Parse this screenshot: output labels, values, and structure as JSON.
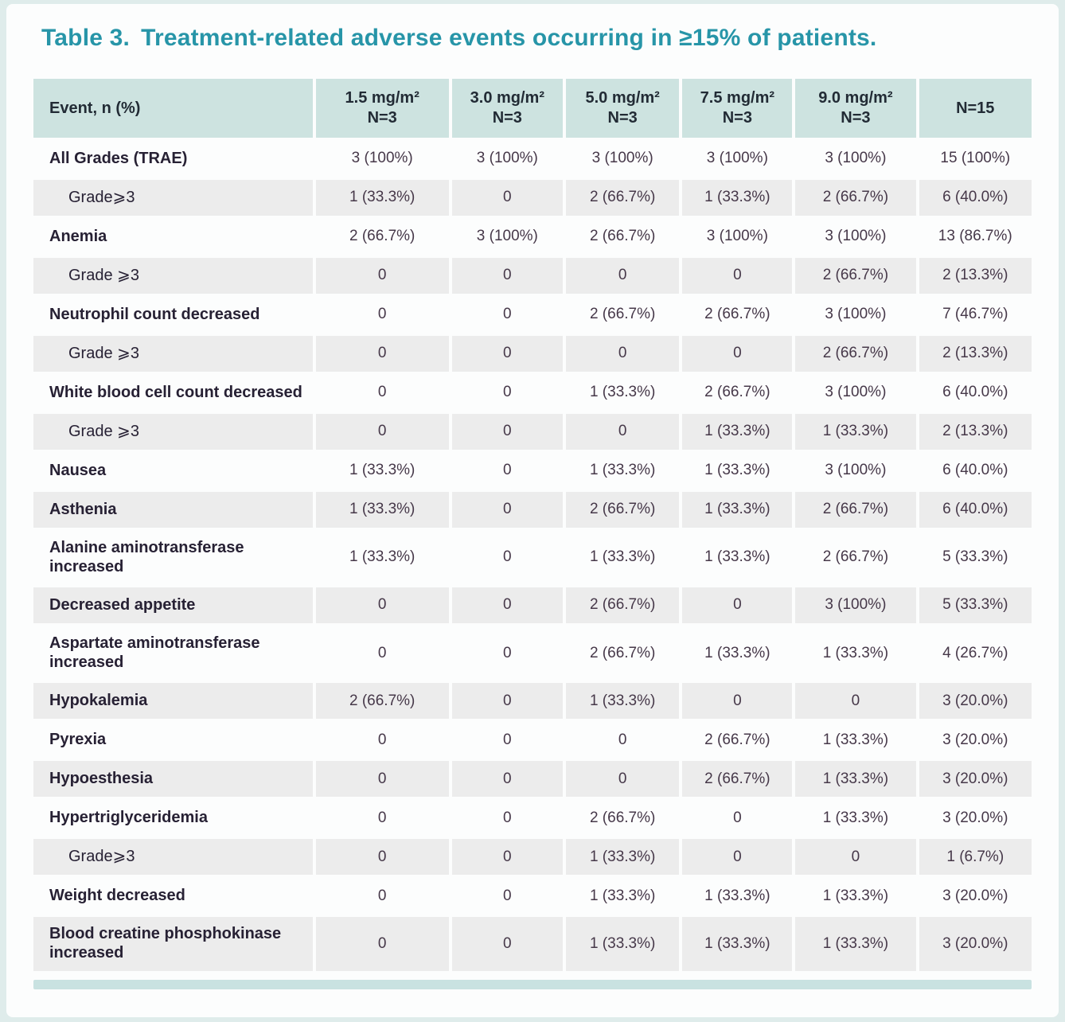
{
  "title_prefix": "Table 3.",
  "title_text": "Treatment-related adverse events occurring in ≥15% of patients.",
  "colors": {
    "title_teal": "#2795a8",
    "header_bg": "#cde3e0",
    "header_text": "#222b35",
    "stripe_bg": "#ececec",
    "label_text": "#272134",
    "value_text": "#463849",
    "footer_bar": "#c9e2e1",
    "page_bg": "#fcfdfd"
  },
  "table": {
    "columns": [
      {
        "line1": "Event, n (%)",
        "line2": ""
      },
      {
        "line1": "1.5 mg/m²",
        "line2": "N=3"
      },
      {
        "line1": "3.0 mg/m²",
        "line2": "N=3"
      },
      {
        "line1": "5.0 mg/m²",
        "line2": "N=3"
      },
      {
        "line1": "7.5 mg/m²",
        "line2": "N=3"
      },
      {
        "line1": "9.0 mg/m²",
        "line2": "N=3"
      },
      {
        "line1": "N=15",
        "line2": ""
      }
    ],
    "rows": [
      {
        "label": "All Grades (TRAE)",
        "sub": false,
        "values": [
          "3 (100%)",
          "3 (100%)",
          "3 (100%)",
          "3 (100%)",
          "3 (100%)",
          "15 (100%)"
        ]
      },
      {
        "label": "Grade⩾3",
        "sub": true,
        "values": [
          "1 (33.3%)",
          "0",
          "2 (66.7%)",
          "1 (33.3%)",
          "2 (66.7%)",
          "6 (40.0%)"
        ]
      },
      {
        "label": "Anemia",
        "sub": false,
        "values": [
          "2 (66.7%)",
          "3 (100%)",
          "2 (66.7%)",
          "3 (100%)",
          "3 (100%)",
          "13 (86.7%)"
        ]
      },
      {
        "label": "Grade ⩾3",
        "sub": true,
        "values": [
          "0",
          "0",
          "0",
          "0",
          "2 (66.7%)",
          "2 (13.3%)"
        ]
      },
      {
        "label": "Neutrophil count decreased",
        "sub": false,
        "values": [
          "0",
          "0",
          "2 (66.7%)",
          "2 (66.7%)",
          "3 (100%)",
          "7 (46.7%)"
        ]
      },
      {
        "label": "Grade ⩾3",
        "sub": true,
        "values": [
          "0",
          "0",
          "0",
          "0",
          "2 (66.7%)",
          "2 (13.3%)"
        ]
      },
      {
        "label": "White blood cell count decreased",
        "sub": false,
        "values": [
          "0",
          "0",
          "1 (33.3%)",
          "2 (66.7%)",
          "3 (100%)",
          "6 (40.0%)"
        ]
      },
      {
        "label": "Grade ⩾3",
        "sub": true,
        "values": [
          "0",
          "0",
          "0",
          "1 (33.3%)",
          "1 (33.3%)",
          "2 (13.3%)"
        ]
      },
      {
        "label": "Nausea",
        "sub": false,
        "values": [
          "1 (33.3%)",
          "0",
          "1 (33.3%)",
          "1 (33.3%)",
          "3 (100%)",
          "6 (40.0%)"
        ]
      },
      {
        "label": "Asthenia",
        "sub": false,
        "values": [
          "1 (33.3%)",
          "0",
          "2 (66.7%)",
          "1 (33.3%)",
          "2 (66.7%)",
          "6 (40.0%)"
        ]
      },
      {
        "label": "Alanine aminotransferase increased",
        "sub": false,
        "values": [
          "1 (33.3%)",
          "0",
          "1 (33.3%)",
          "1 (33.3%)",
          "2 (66.7%)",
          "5 (33.3%)"
        ]
      },
      {
        "label": "Decreased appetite",
        "sub": false,
        "values": [
          "0",
          "0",
          "2 (66.7%)",
          "0",
          "3 (100%)",
          "5 (33.3%)"
        ]
      },
      {
        "label": "Aspartate aminotransferase increased",
        "sub": false,
        "values": [
          "0",
          "0",
          "2 (66.7%)",
          "1 (33.3%)",
          "1 (33.3%)",
          "4 (26.7%)"
        ]
      },
      {
        "label": "Hypokalemia",
        "sub": false,
        "values": [
          "2 (66.7%)",
          "0",
          "1 (33.3%)",
          "0",
          "0",
          "3 (20.0%)"
        ]
      },
      {
        "label": "Pyrexia",
        "sub": false,
        "values": [
          "0",
          "0",
          "0",
          "2 (66.7%)",
          "1 (33.3%)",
          "3 (20.0%)"
        ]
      },
      {
        "label": "Hypoesthesia",
        "sub": false,
        "values": [
          "0",
          "0",
          "0",
          "2 (66.7%)",
          "1 (33.3%)",
          "3 (20.0%)"
        ]
      },
      {
        "label": "Hypertriglyceridemia",
        "sub": false,
        "values": [
          "0",
          "0",
          "2 (66.7%)",
          "0",
          "1 (33.3%)",
          "3 (20.0%)"
        ]
      },
      {
        "label": "Grade⩾3",
        "sub": true,
        "values": [
          "0",
          "0",
          "1 (33.3%)",
          "0",
          "0",
          "1 (6.7%)"
        ]
      },
      {
        "label": "Weight decreased",
        "sub": false,
        "values": [
          "0",
          "0",
          "1 (33.3%)",
          "1 (33.3%)",
          "1 (33.3%)",
          "3 (20.0%)"
        ]
      },
      {
        "label": "Blood creatine phosphokinase increased",
        "sub": false,
        "values": [
          "0",
          "0",
          "1 (33.3%)",
          "1 (33.3%)",
          "1 (33.3%)",
          "3 (20.0%)"
        ]
      }
    ]
  }
}
